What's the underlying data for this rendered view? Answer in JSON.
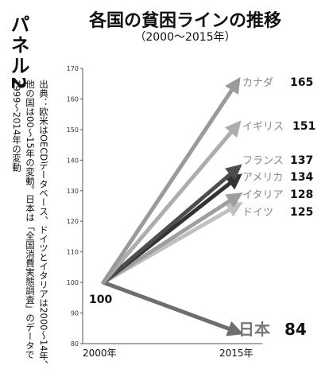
{
  "panel_label": "パネル2",
  "title": "各国の貧困ラインの推移",
  "subtitle": "（2000〜2015年）",
  "source_note": "出典：欧米はOECDデータベース、ドイツとイタリアは2000〜14年、他の国は00〜15年の変動。日本は「全国消費実態調査」のデータで1999〜2014年の変動",
  "chart_data": {
    "type": "line",
    "title": "各国の貧困ラインの推移",
    "subtitle": "（2000〜2015年）",
    "x": [
      "2000年",
      "2015年"
    ],
    "ylim": [
      80,
      170
    ],
    "yticks": [
      80,
      90,
      100,
      110,
      120,
      130,
      140,
      150,
      160,
      170
    ],
    "start_label": "100",
    "series": [
      {
        "name": "カナダ",
        "values": [
          100,
          165
        ],
        "color": "#9a9a9a"
      },
      {
        "name": "イギリス",
        "values": [
          100,
          151
        ],
        "color": "#adadad"
      },
      {
        "name": "フランス",
        "values": [
          100,
          137
        ],
        "color": "#4d4d4d"
      },
      {
        "name": "アメリカ",
        "values": [
          100,
          134
        ],
        "color": "#333333"
      },
      {
        "name": "イタリア",
        "values": [
          100,
          128
        ],
        "color": "#9e9e9e"
      },
      {
        "name": "ドイツ",
        "values": [
          100,
          125
        ],
        "color": "#c0c0c0"
      },
      {
        "name": "日本",
        "values": [
          100,
          84
        ],
        "color": "#6e6e6e"
      }
    ],
    "grid": false,
    "legend": "labels at line ends"
  }
}
